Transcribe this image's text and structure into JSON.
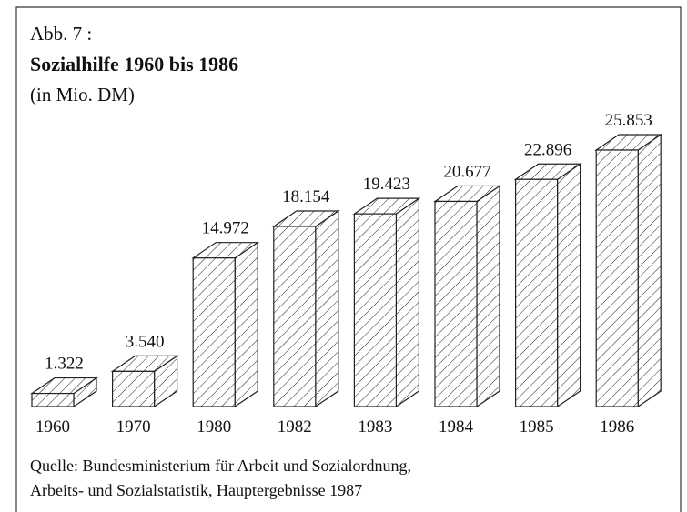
{
  "chart_data": {
    "type": "bar3d",
    "title": "Sozialhilfe 1960 bis 1986",
    "figure_label": "Abb. 7 :",
    "subtitle": "(in Mio. DM)",
    "source": [
      "Quelle: Bundesministerium für Arbeit und Sozialordnung,",
      "Arbeits- und Sozialstatistik, Hauptergebnisse 1987"
    ],
    "categories": [
      "1960",
      "1970",
      "1980",
      "1982",
      "1983",
      "1984",
      "1985",
      "1986"
    ],
    "values": [
      1322,
      3540,
      14972,
      18154,
      19423,
      20677,
      22896,
      25853
    ],
    "value_labels": [
      "1.322",
      "3.540",
      "14.972",
      "18.154",
      "19.423",
      "20.677",
      "22.896",
      "25.853"
    ],
    "color": "#ffffff",
    "hatch": true
  }
}
